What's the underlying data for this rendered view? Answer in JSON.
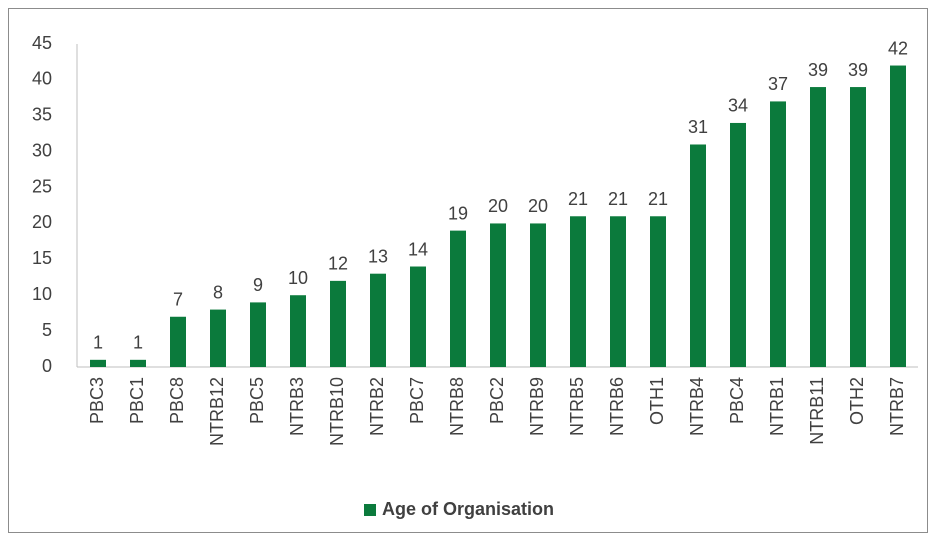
{
  "chart_data": {
    "type": "bar",
    "categories": [
      "PBC3",
      "PBC1",
      "PBC8",
      "NTRB12",
      "PBC5",
      "NTRB3",
      "NTRB10",
      "NTRB2",
      "PBC7",
      "NTRB8",
      "PBC2",
      "NTRB9",
      "NTRB5",
      "NTRB6",
      "OTH1",
      "NTRB4",
      "PBC4",
      "NTRB1",
      "NTRB11",
      "OTH2",
      "NTRB7"
    ],
    "series": [
      {
        "name": "Age of Organisation",
        "color": "#0b7a3c",
        "values": [
          1,
          1,
          7,
          8,
          9,
          10,
          12,
          13,
          14,
          19,
          20,
          20,
          21,
          21,
          21,
          31,
          34,
          37,
          39,
          39,
          42
        ]
      }
    ],
    "ylim": [
      0,
      45
    ],
    "yticks": [
      0,
      5,
      10,
      15,
      20,
      25,
      30,
      35,
      40,
      45
    ],
    "grid": false,
    "legend": "bottom"
  }
}
